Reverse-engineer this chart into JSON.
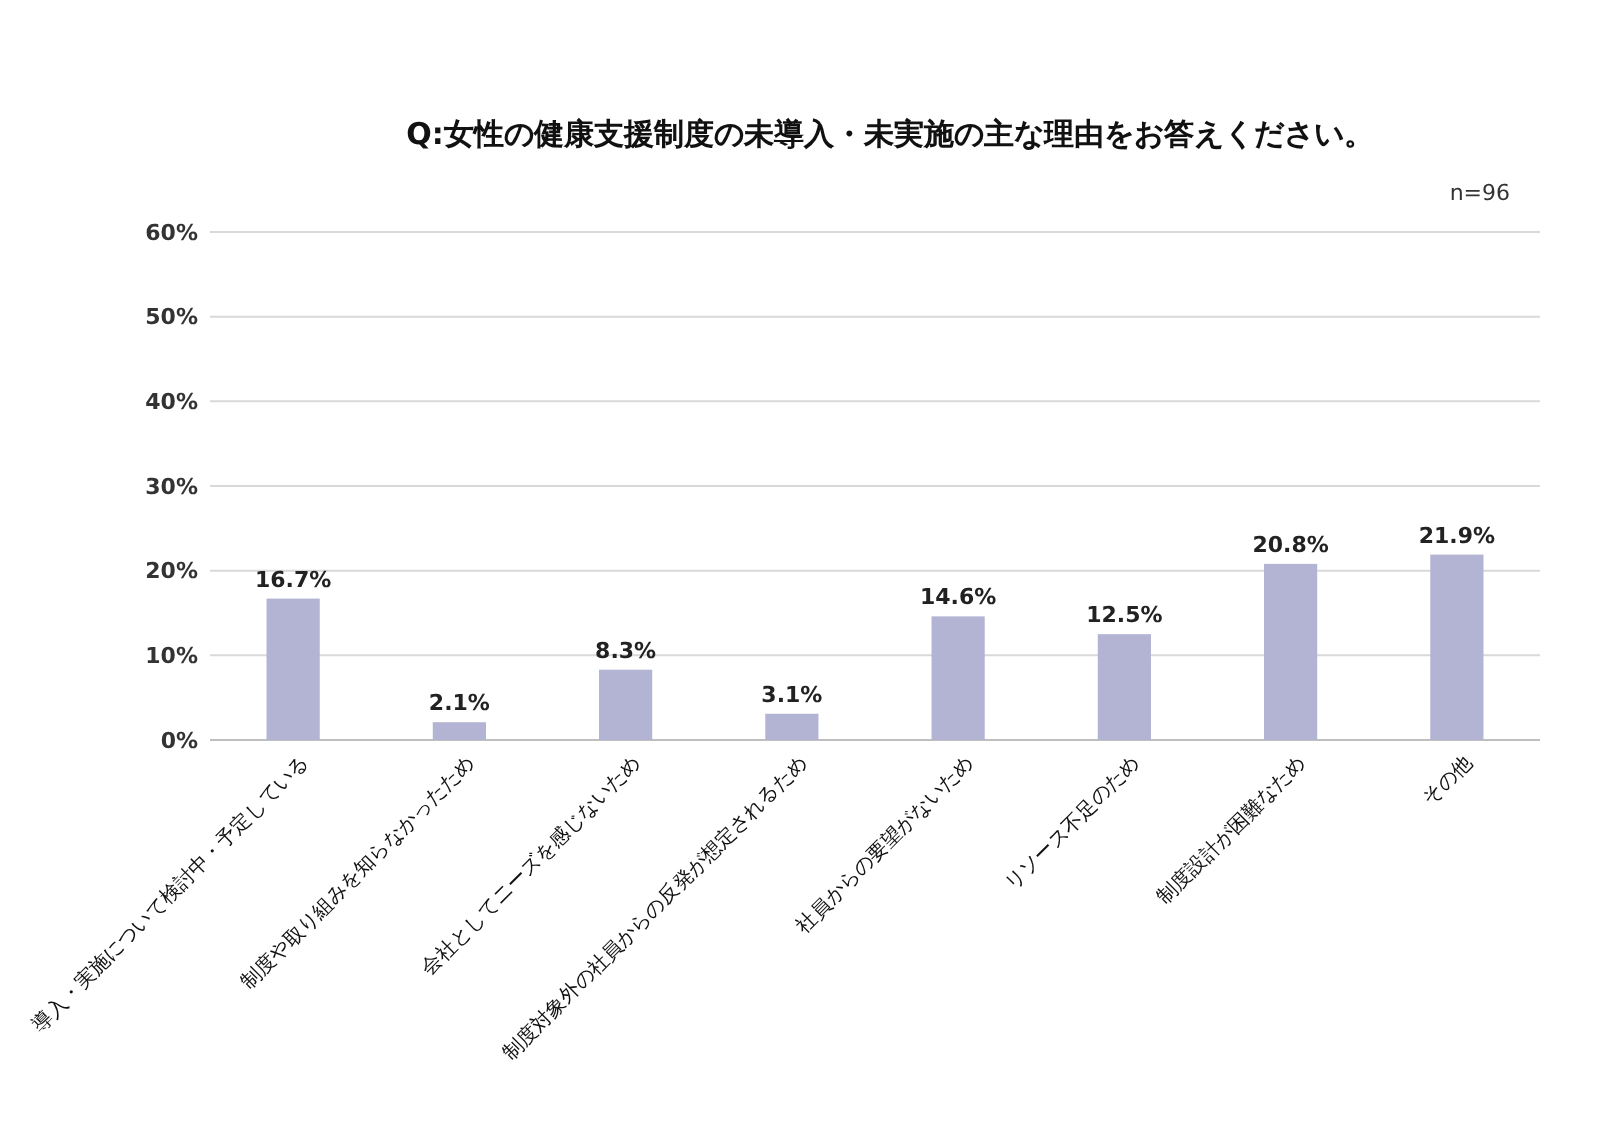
{
  "chart_data": {
    "type": "bar",
    "title": "Q:女性の健康支援制度の未導入・未実施の主な理由をお答えください。",
    "annotations": [
      "n=96"
    ],
    "categories": [
      "導入・実施について検討中・予定している",
      "制度や取り組みを知らなかったため",
      "会社としてニーズを感じないため",
      "制度対象外の社員からの反発が想定されるため",
      "社員からの要望がないため",
      "リソース不足のため",
      "制度設計が困難なため",
      "その他"
    ],
    "values": [
      16.7,
      2.1,
      8.3,
      3.1,
      14.6,
      12.5,
      20.8,
      21.9
    ],
    "value_labels": [
      "16.7%",
      "2.1%",
      "8.3%",
      "3.1%",
      "14.6%",
      "12.5%",
      "20.8%",
      "21.9%"
    ],
    "color": "#b3b3d3",
    "ylim": [
      0,
      60
    ],
    "yticks": [
      {
        "value": 0,
        "label": "0%"
      },
      {
        "value": 10,
        "label": "10%"
      },
      {
        "value": 20,
        "label": "20%"
      },
      {
        "value": 30,
        "label": "30%"
      },
      {
        "value": 40,
        "label": "40%"
      },
      {
        "value": 50,
        "label": "50%"
      },
      {
        "value": 60,
        "label": "60%"
      }
    ],
    "grid": "y"
  }
}
